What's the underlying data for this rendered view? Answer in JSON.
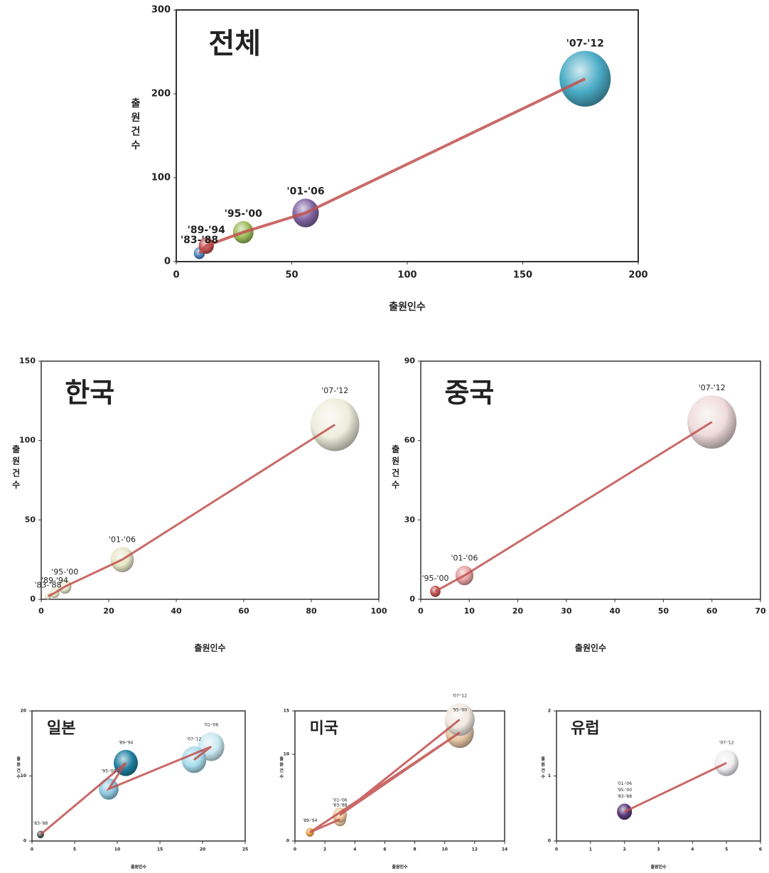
{
  "chart_data": [
    {
      "type": "bubble",
      "title": "전체",
      "x_label": "출원인수",
      "y_label": "출원건수",
      "labels": [
        "'83-'88",
        "'89-'94",
        "'95-'00",
        "'01-'06",
        "'07-'12"
      ],
      "x": [
        10,
        13,
        29,
        56,
        177
      ],
      "y": [
        10,
        19,
        35,
        58,
        218
      ],
      "colors": [
        "#4f81bd",
        "#c0504d",
        "#9bbb59",
        "#8064a2",
        "#4bacc6"
      ],
      "line_color": "#c0504d",
      "xlim": [
        0,
        200
      ],
      "ylim": [
        0,
        300
      ],
      "xticks": [
        0,
        50,
        100,
        150,
        200
      ],
      "yticks": [
        0,
        100,
        200,
        300
      ]
    },
    {
      "type": "bubble",
      "title": "한국",
      "x_label": "출원인수",
      "y_label": "출원건수",
      "labels": [
        "'83-'88",
        "'89-'94",
        "'95-'00",
        "'01-'06",
        "'07-'12"
      ],
      "x": [
        2,
        4,
        7,
        24,
        87
      ],
      "y": [
        2,
        4,
        8,
        25,
        110
      ],
      "colors": [
        "#e8e6c8",
        "#e8e6c8",
        "#e8e6c8",
        "#e8e6c8",
        "#eeeedd"
      ],
      "line_color": "#c0504d",
      "xlim": [
        0,
        100
      ],
      "ylim": [
        0,
        150
      ],
      "xticks": [
        0,
        20,
        40,
        60,
        80,
        100
      ],
      "yticks": [
        0,
        50,
        100,
        150
      ]
    },
    {
      "type": "bubble",
      "title": "중국",
      "x_label": "출원인수",
      "y_label": "출원건수",
      "labels": [
        "'95-'00",
        "'01-'06",
        "'07-'12"
      ],
      "x": [
        3,
        9,
        60
      ],
      "y": [
        3,
        9,
        67
      ],
      "colors": [
        "#c0504d",
        "#e6a0a0",
        "#f0dcdc"
      ],
      "line_color": "#c0504d",
      "xlim": [
        0,
        70
      ],
      "ylim": [
        0,
        90
      ],
      "xticks": [
        0,
        10,
        20,
        30,
        40,
        50,
        60,
        70
      ],
      "yticks": [
        0,
        30,
        60,
        90
      ]
    },
    {
      "type": "bubble",
      "title": "일본",
      "x_label": "출원인수",
      "y_label": "출원건수",
      "labels": [
        "'83-'88",
        "'89-'94",
        "'95-'00",
        "'01-'06",
        "'07-'12"
      ],
      "x": [
        1,
        11,
        9,
        21,
        19
      ],
      "y": [
        1,
        12,
        8,
        14.5,
        12.5
      ],
      "colors": [
        "#4a5a5a",
        "#1f7fa0",
        "#8fc8e0",
        "#c8e8f0",
        "#a8dcec"
      ],
      "line_color": "#c0504d",
      "xlim": [
        0,
        25
      ],
      "ylim": [
        0,
        20
      ],
      "xticks": [
        0,
        5,
        10,
        15,
        20,
        25
      ],
      "yticks": [
        0,
        10,
        20
      ]
    },
    {
      "type": "bubble",
      "title": "미국",
      "x_label": "출원인수",
      "y_label": "출원건수",
      "labels": [
        "'83-'88",
        "'89-'94",
        "'95-'00",
        "'01-'06",
        "'07-'12"
      ],
      "x": [
        3,
        1,
        11,
        3,
        11
      ],
      "y": [
        2.5,
        1,
        12.5,
        3,
        14
      ],
      "colors": [
        "#f0c8a0",
        "#e8a040",
        "#e8c8a8",
        "#f0c8a0",
        "#f0e8e0"
      ],
      "line_color": "#c0504d",
      "xlim": [
        0,
        14
      ],
      "ylim": [
        0,
        15
      ],
      "xticks": [
        0,
        2,
        4,
        6,
        8,
        10,
        12,
        14
      ],
      "yticks": [
        0,
        10,
        15
      ]
    },
    {
      "type": "bubble",
      "title": "유럽",
      "x_label": "출원인수",
      "y_label": "출원건수",
      "labels": [
        "'83-'88",
        "'95-'00",
        "'01-'06",
        "'07-'12"
      ],
      "x": [
        2,
        2,
        2,
        5
      ],
      "y": [
        0.45,
        0.45,
        0.45,
        1.2
      ],
      "colors": [
        "#5a3a7a",
        "#5a3a7a",
        "#5a3a7a",
        "#f0eef0"
      ],
      "line_color": "#c0504d",
      "xlim": [
        0,
        6
      ],
      "ylim": [
        0,
        2
      ],
      "xticks": [
        0,
        1,
        2,
        3,
        4,
        5,
        6
      ],
      "yticks": [
        0,
        1,
        2
      ]
    }
  ]
}
